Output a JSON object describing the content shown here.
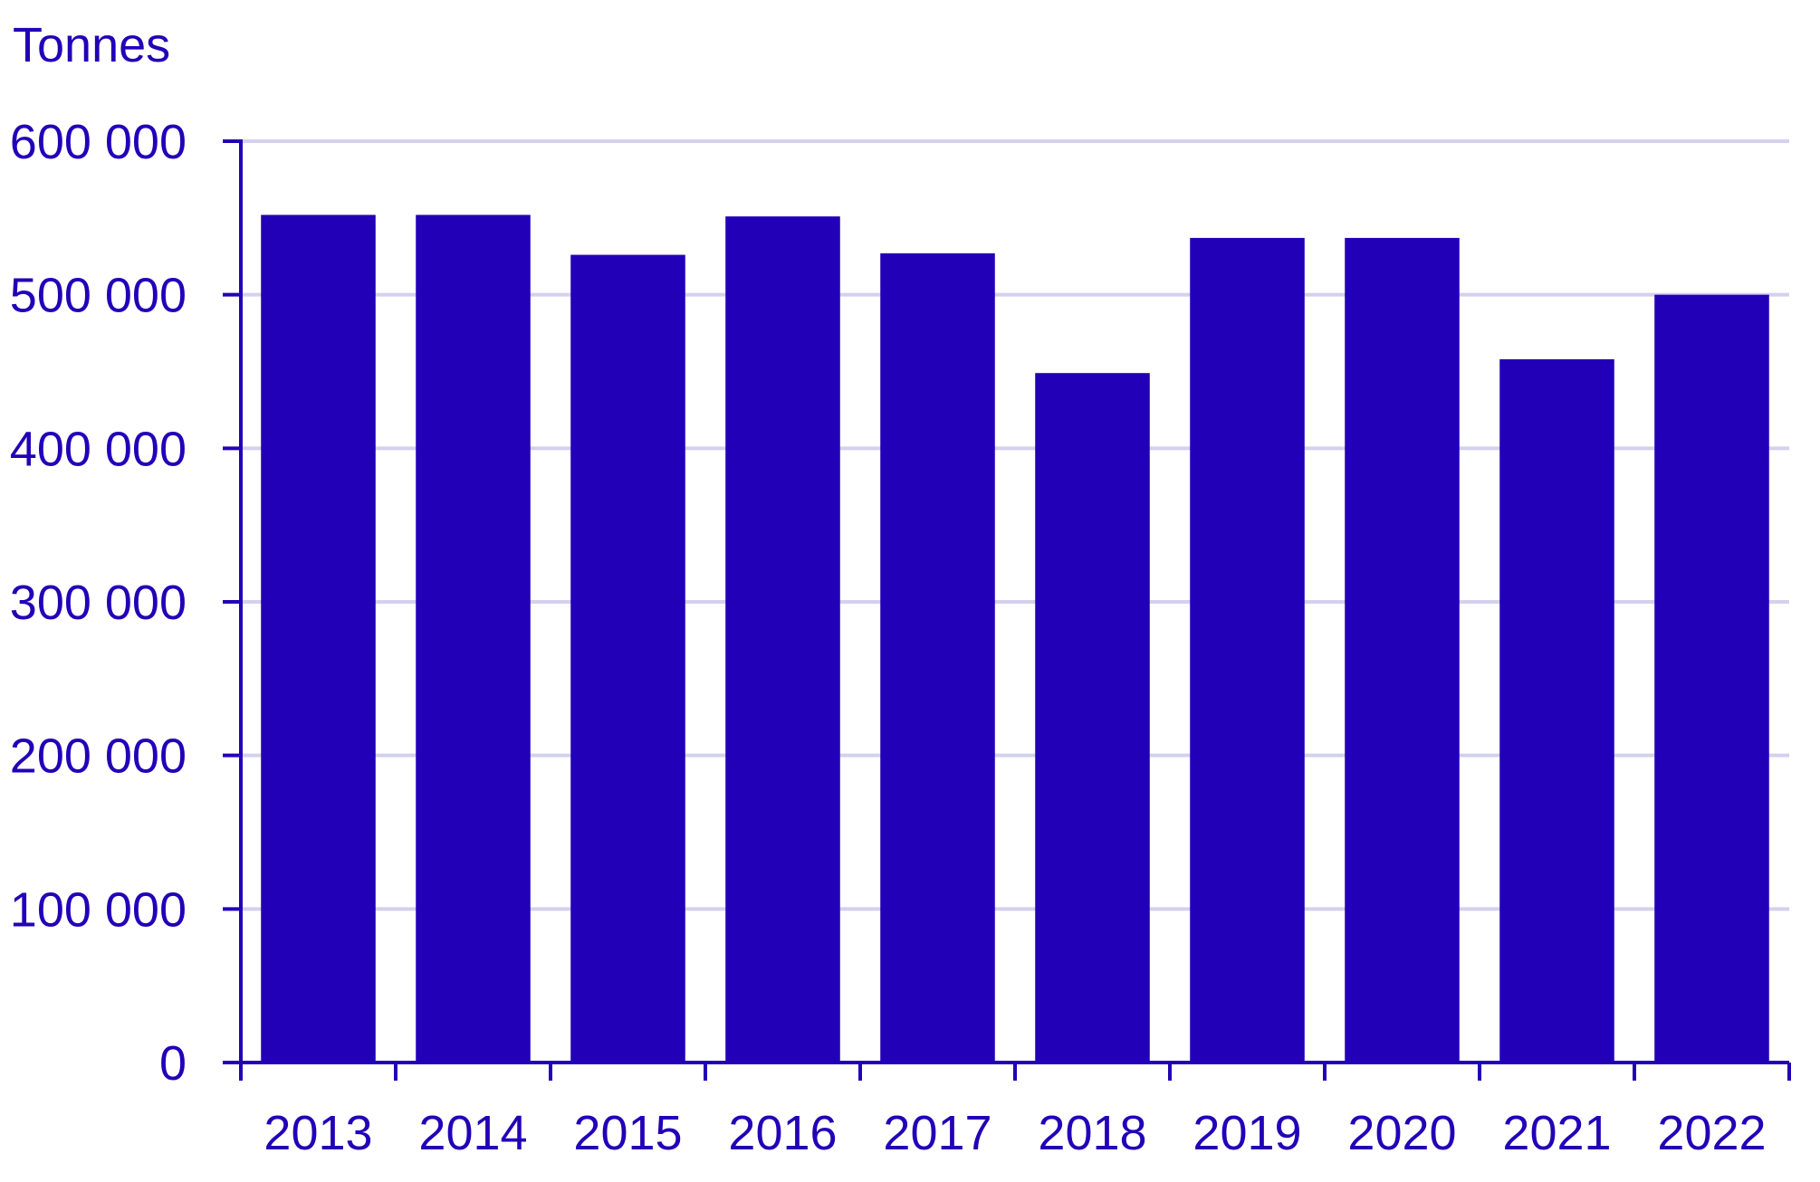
{
  "chart_data": {
    "type": "bar",
    "unit_label": "Tonnes",
    "categories": [
      "2013",
      "2014",
      "2015",
      "2016",
      "2017",
      "2018",
      "2019",
      "2020",
      "2021",
      "2022"
    ],
    "values": [
      552000,
      552000,
      526000,
      551000,
      527000,
      449000,
      537000,
      537000,
      458000,
      500000
    ],
    "ylim": [
      0,
      600000
    ],
    "yticks": [
      0,
      100000,
      200000,
      300000,
      400000,
      500000,
      600000
    ],
    "ytick_labels": [
      "0",
      "100 000",
      "200 000",
      "300 000",
      "400 000",
      "500 000",
      "600 000"
    ],
    "grid": true,
    "colors": {
      "bar": "#2200B8",
      "axis": "#2200B8",
      "grid": "#D4D0EE",
      "text": "#2200B8"
    }
  }
}
